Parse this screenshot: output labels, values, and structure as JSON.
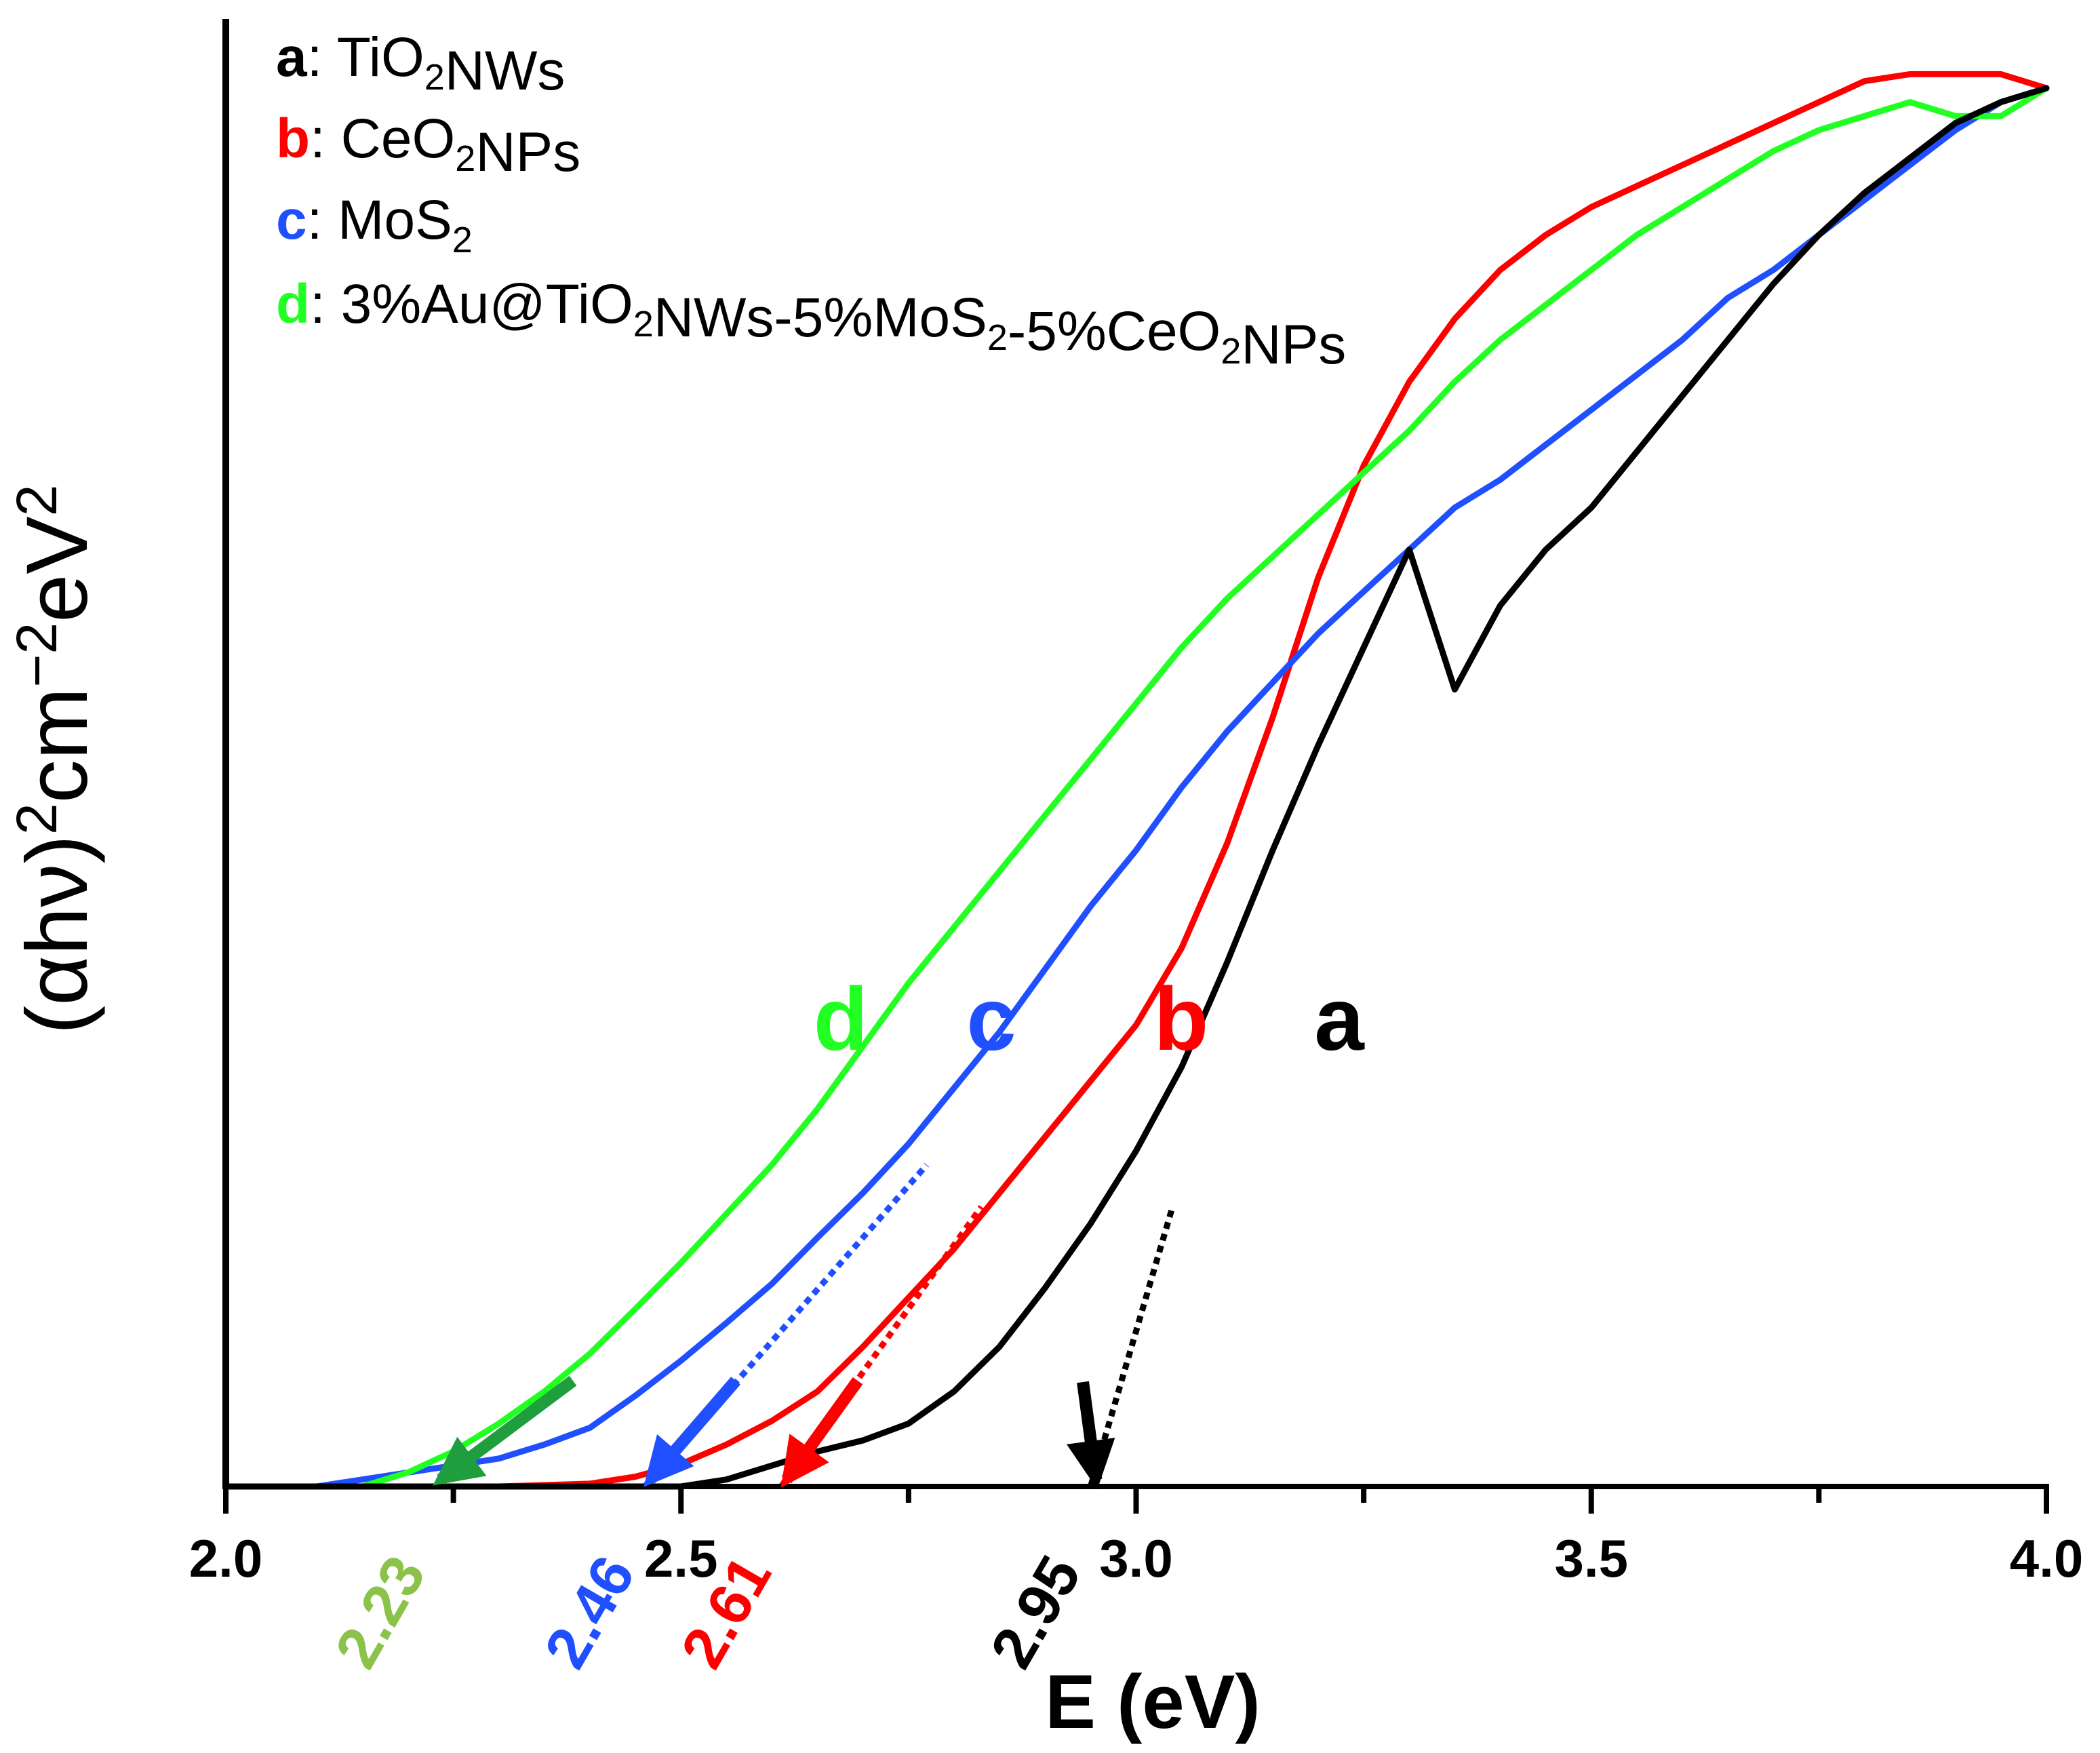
{
  "chart_data": {
    "type": "line",
    "title": "",
    "xlabel": "E (eV)",
    "ylabel": "(αhν)",
    "ylabel_sup1": "2",
    "ylabel_mid": "cm",
    "ylabel_sup2": "−2",
    "ylabel_end": "eV",
    "ylabel_sup3": "2",
    "xlim": [
      2.0,
      4.0
    ],
    "ylim": [
      0,
      1.0
    ],
    "x_ticks": [
      "2.0",
      "2.5",
      "3.0",
      "3.5",
      "4.0"
    ],
    "colors": {
      "a": "#000000",
      "b": "#ff0000",
      "c": "#1f4fff",
      "d": "#22ff22",
      "d_value": "#8bc34a",
      "d_arrow": "#1f9e3e"
    },
    "legend": [
      {
        "letter": "a",
        "text": ": TiO",
        "sub": "2",
        "rest": "NWs",
        "parts": [
          [
            ": TiO",
            "n"
          ],
          [
            "2",
            "s"
          ],
          [
            "NWs",
            "n"
          ]
        ]
      },
      {
        "letter": "b",
        "text": ": CeO",
        "sub": "2",
        "rest": "NPs",
        "parts": [
          [
            ": CeO",
            "n"
          ],
          [
            "2",
            "s"
          ],
          [
            "NPs",
            "n"
          ]
        ]
      },
      {
        "letter": "c",
        "text": ": MoS",
        "sub": "2",
        "rest": "",
        "parts": [
          [
            ": MoS",
            "n"
          ],
          [
            "2",
            "s"
          ]
        ]
      },
      {
        "letter": "d",
        "text": ": 3%Au@TiO",
        "sub": "2",
        "rest": "NWs-5%MoS₂-5%CeO₂NPs",
        "parts": [
          [
            ": 3%Au@TiO",
            "n"
          ],
          [
            "2",
            "s"
          ],
          [
            "NWs-5%MoS",
            "n"
          ],
          [
            "2",
            "s"
          ],
          [
            "-5%CeO",
            "n"
          ],
          [
            "2",
            "s"
          ],
          [
            "NPs",
            "n"
          ]
        ]
      }
    ],
    "series": [
      {
        "name": "a",
        "label": "a",
        "band_gap": "2.95",
        "x": [
          2.0,
          2.3,
          2.4,
          2.5,
          2.55,
          2.6,
          2.65,
          2.7,
          2.75,
          2.8,
          2.85,
          2.9,
          2.95,
          3.0,
          3.05,
          3.1,
          3.15,
          3.2,
          3.25,
          3.3,
          3.35,
          3.4,
          3.45,
          3.5,
          3.55,
          3.6,
          3.65,
          3.7,
          3.75,
          3.8,
          3.85,
          3.9,
          3.95,
          4.0
        ],
        "values": [
          0,
          0,
          0,
          0,
          0.005,
          0.015,
          0.025,
          0.033,
          0.045,
          0.068,
          0.1,
          0.142,
          0.188,
          0.24,
          0.3,
          0.375,
          0.455,
          0.53,
          0.6,
          0.67,
          0.57,
          0.63,
          0.67,
          0.7,
          0.74,
          0.78,
          0.82,
          0.86,
          0.895,
          0.925,
          0.95,
          0.975,
          0.99,
          1.0
        ],
        "fit": {
          "x1": 2.95,
          "y1": 0,
          "x2": 3.04,
          "y2": 0.2
        }
      },
      {
        "name": "b",
        "label": "b",
        "band_gap": "2.61",
        "x": [
          2.0,
          2.1,
          2.2,
          2.3,
          2.4,
          2.45,
          2.5,
          2.55,
          2.6,
          2.65,
          2.7,
          2.75,
          2.8,
          2.85,
          2.9,
          2.95,
          3.0,
          3.05,
          3.1,
          3.15,
          3.2,
          3.25,
          3.3,
          3.35,
          3.4,
          3.45,
          3.5,
          3.55,
          3.6,
          3.65,
          3.7,
          3.75,
          3.8,
          3.85,
          3.9,
          3.95,
          4.0
        ],
        "values": [
          0,
          0,
          0,
          0,
          0.002,
          0.007,
          0.016,
          0.03,
          0.047,
          0.068,
          0.1,
          0.135,
          0.17,
          0.21,
          0.25,
          0.29,
          0.33,
          0.385,
          0.46,
          0.55,
          0.65,
          0.73,
          0.79,
          0.835,
          0.87,
          0.895,
          0.915,
          0.93,
          0.945,
          0.96,
          0.975,
          0.99,
          1.005,
          1.01,
          1.01,
          1.01,
          1.0
        ],
        "fit": {
          "x1": 2.61,
          "y1": 0,
          "x2": 2.83,
          "y2": 0.2
        }
      },
      {
        "name": "c",
        "label": "c",
        "band_gap": "2.46",
        "x": [
          2.0,
          2.1,
          2.2,
          2.3,
          2.35,
          2.4,
          2.45,
          2.5,
          2.55,
          2.6,
          2.65,
          2.7,
          2.75,
          2.8,
          2.85,
          2.9,
          2.95,
          3.0,
          3.05,
          3.1,
          3.15,
          3.2,
          3.25,
          3.3,
          3.35,
          3.4,
          3.45,
          3.5,
          3.55,
          3.6,
          3.65,
          3.7,
          3.75,
          3.8,
          3.85,
          3.9,
          3.95,
          4.0
        ],
        "values": [
          0,
          0,
          0.01,
          0.02,
          0.03,
          0.042,
          0.065,
          0.09,
          0.117,
          0.145,
          0.178,
          0.21,
          0.245,
          0.285,
          0.325,
          0.37,
          0.415,
          0.455,
          0.5,
          0.54,
          0.575,
          0.61,
          0.64,
          0.67,
          0.7,
          0.72,
          0.745,
          0.77,
          0.795,
          0.82,
          0.85,
          0.87,
          0.895,
          0.92,
          0.945,
          0.97,
          0.99,
          1.0
        ],
        "fit": {
          "x1": 2.46,
          "y1": 0,
          "x2": 2.77,
          "y2": 0.23
        }
      },
      {
        "name": "d",
        "label": "d",
        "band_gap": "2.23",
        "x": [
          2.0,
          2.1,
          2.15,
          2.2,
          2.25,
          2.3,
          2.35,
          2.4,
          2.45,
          2.5,
          2.55,
          2.6,
          2.65,
          2.7,
          2.75,
          2.8,
          2.85,
          2.9,
          2.95,
          3.0,
          3.05,
          3.1,
          3.15,
          3.2,
          3.25,
          3.3,
          3.35,
          3.4,
          3.45,
          3.5,
          3.55,
          3.6,
          3.65,
          3.7,
          3.75,
          3.8,
          3.85,
          3.9,
          3.95,
          4.0
        ],
        "values": [
          0,
          0,
          0,
          0.01,
          0.025,
          0.045,
          0.068,
          0.095,
          0.127,
          0.16,
          0.195,
          0.23,
          0.27,
          0.315,
          0.36,
          0.4,
          0.44,
          0.48,
          0.52,
          0.56,
          0.6,
          0.635,
          0.665,
          0.695,
          0.725,
          0.755,
          0.79,
          0.82,
          0.845,
          0.87,
          0.895,
          0.915,
          0.935,
          0.955,
          0.97,
          0.98,
          0.99,
          0.98,
          0.98,
          1.0
        ],
        "fit": {
          "x1": 2.23,
          "y1": 0,
          "x2": 2.38,
          "y2": 0.075
        }
      }
    ]
  }
}
